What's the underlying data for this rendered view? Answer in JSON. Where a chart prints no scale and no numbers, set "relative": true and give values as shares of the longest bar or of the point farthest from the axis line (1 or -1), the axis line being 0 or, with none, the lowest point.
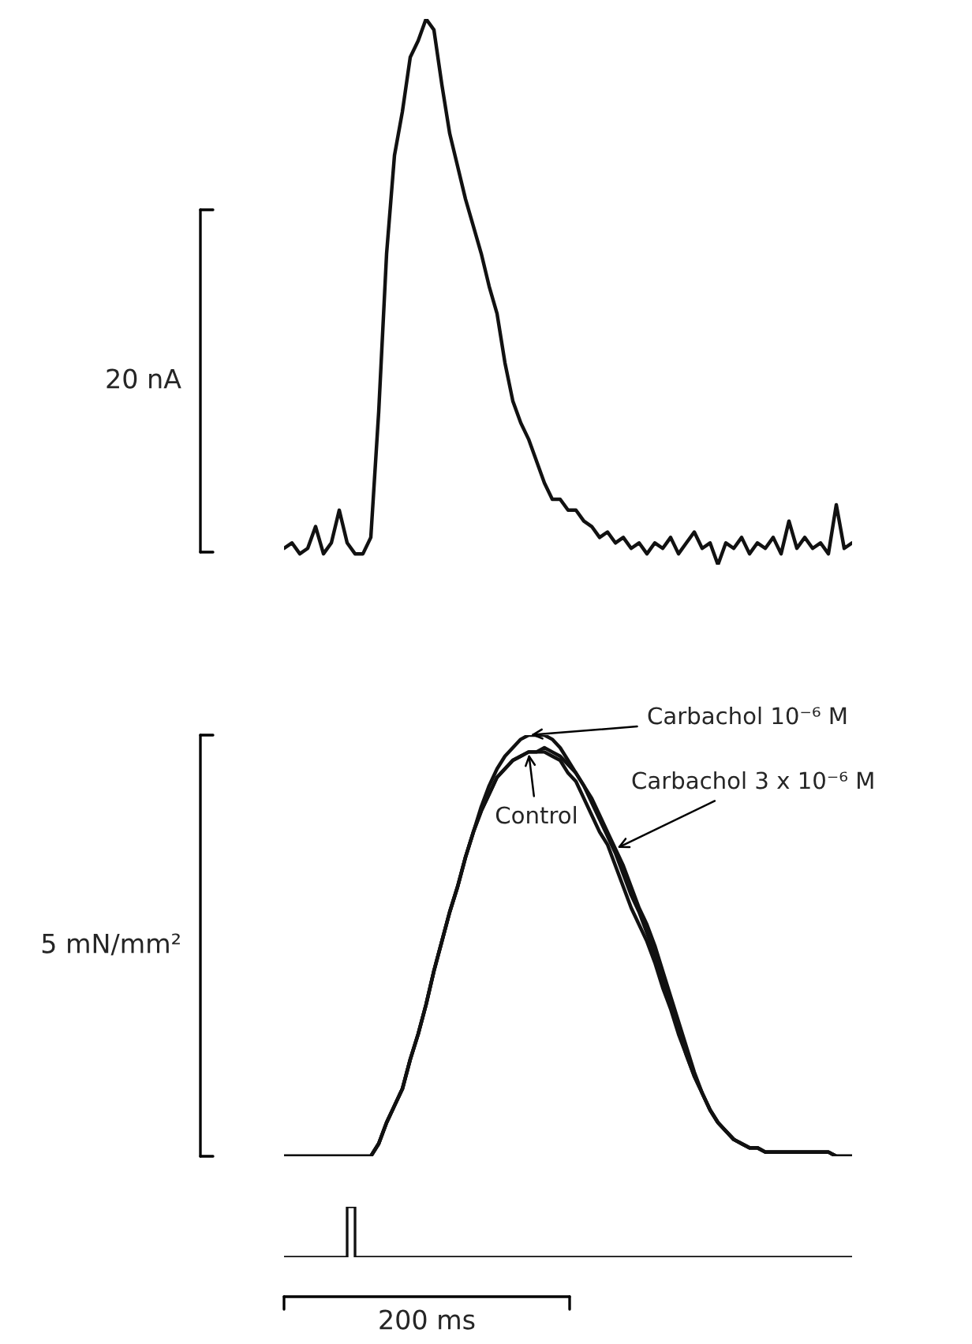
{
  "chart_data": [
    {
      "type": "line",
      "relative": true,
      "categories": [
        null,
        null,
        null,
        null,
        null,
        null,
        null,
        null,
        null,
        null,
        null,
        null,
        null,
        null,
        null,
        null,
        null,
        null,
        null,
        null,
        null,
        null,
        null,
        null,
        null,
        null,
        null,
        null,
        null,
        null,
        null,
        null,
        null,
        null,
        null,
        null,
        null,
        null,
        null,
        null,
        null,
        null,
        null,
        null,
        null,
        null,
        null,
        null,
        null,
        null,
        null,
        null,
        null,
        null,
        null,
        null,
        null,
        null,
        null,
        null,
        null,
        null,
        null,
        null,
        null,
        null,
        null,
        null,
        null,
        null,
        null,
        null,
        null
      ],
      "annotations": [
        "20 nA"
      ],
      "series": [
        {
          "color": "#111111",
          "values": [
            0.03,
            0.04,
            0.02,
            0.03,
            0.07,
            0.02,
            0.04,
            0.1,
            0.04,
            0.02,
            0.02,
            0.05,
            0.28,
            0.57,
            0.75,
            0.83,
            0.93,
            0.96,
            1.0,
            0.98,
            0.88,
            0.79,
            0.73,
            0.67,
            0.62,
            0.57,
            0.51,
            0.46,
            0.37,
            0.3,
            0.26,
            0.23,
            0.19,
            0.15,
            0.12,
            0.12,
            0.1,
            0.1,
            0.08,
            0.07,
            0.05,
            0.06,
            0.04,
            0.05,
            0.03,
            0.04,
            0.02,
            0.04,
            0.03,
            0.05,
            0.02,
            0.04,
            0.06,
            0.03,
            0.04,
            0.0,
            0.04,
            0.03,
            0.05,
            0.02,
            0.04,
            0.03,
            0.05,
            0.02,
            0.08,
            0.03,
            0.05,
            0.03,
            0.04,
            0.02,
            0.11,
            0.03,
            0.04
          ]
        }
      ]
    },
    {
      "type": "line",
      "relative": true,
      "categories": [
        null,
        null,
        null,
        null,
        null,
        null,
        null,
        null,
        null,
        null,
        null,
        null,
        null,
        null,
        null,
        null,
        null,
        null,
        null,
        null,
        null,
        null,
        null,
        null,
        null,
        null,
        null,
        null,
        null,
        null,
        null,
        null,
        null,
        null,
        null,
        null,
        null,
        null,
        null,
        null,
        null,
        null,
        null,
        null,
        null,
        null,
        null,
        null,
        null,
        null,
        null,
        null,
        null,
        null,
        null,
        null,
        null,
        null,
        null,
        null,
        null,
        null,
        null,
        null,
        null,
        null,
        null,
        null,
        null,
        null,
        null,
        null,
        null
      ],
      "annotations": [
        "5 mN/mm²"
      ],
      "series": [
        {
          "name": "Carbachol 10⁻⁶ M",
          "color": "#111111",
          "values": [
            0,
            0,
            0,
            0,
            0,
            0,
            0,
            0,
            0,
            0,
            0,
            0,
            0.03,
            0.08,
            0.12,
            0.16,
            0.23,
            0.29,
            0.36,
            0.44,
            0.51,
            0.58,
            0.64,
            0.71,
            0.77,
            0.83,
            0.88,
            0.92,
            0.95,
            0.97,
            0.99,
            1.0,
            1.0,
            1.0,
            0.99,
            0.97,
            0.94,
            0.91,
            0.88,
            0.84,
            0.8,
            0.76,
            0.72,
            0.67,
            0.62,
            0.58,
            0.53,
            0.48,
            0.42,
            0.36,
            0.3,
            0.24,
            0.19,
            0.15,
            0.11,
            0.08,
            0.06,
            0.04,
            0.03,
            0.02,
            0.02,
            0.01,
            0.01,
            0.01,
            0.01,
            0.01,
            0.01,
            0.01,
            0.01,
            0.01,
            0,
            0,
            0
          ]
        },
        {
          "name": "Carbachol 3 x 10⁻⁶ M",
          "color": "#111111",
          "values": [
            0,
            0,
            0,
            0,
            0,
            0,
            0,
            0,
            0,
            0,
            0,
            0,
            0.03,
            0.08,
            0.12,
            0.16,
            0.23,
            0.29,
            0.36,
            0.44,
            0.51,
            0.58,
            0.64,
            0.71,
            0.77,
            0.82,
            0.86,
            0.9,
            0.92,
            0.94,
            0.95,
            0.96,
            0.96,
            0.97,
            0.96,
            0.95,
            0.93,
            0.91,
            0.88,
            0.85,
            0.81,
            0.77,
            0.73,
            0.69,
            0.64,
            0.59,
            0.55,
            0.5,
            0.44,
            0.38,
            0.32,
            0.26,
            0.2,
            0.15,
            0.11,
            0.08,
            0.06,
            0.04,
            0.03,
            0.02,
            0.02,
            0.01,
            0.01,
            0.01,
            0.01,
            0.01,
            0.01,
            0.01,
            0.01,
            0.01,
            0,
            0,
            0
          ]
        },
        {
          "name": "Control",
          "color": "#111111",
          "values": [
            0,
            0,
            0,
            0,
            0,
            0,
            0,
            0,
            0,
            0,
            0,
            0,
            0.03,
            0.08,
            0.12,
            0.16,
            0.23,
            0.29,
            0.36,
            0.44,
            0.51,
            0.58,
            0.64,
            0.71,
            0.77,
            0.82,
            0.86,
            0.9,
            0.92,
            0.94,
            0.95,
            0.96,
            0.96,
            0.96,
            0.95,
            0.94,
            0.91,
            0.89,
            0.85,
            0.81,
            0.77,
            0.74,
            0.69,
            0.64,
            0.59,
            0.55,
            0.51,
            0.46,
            0.4,
            0.35,
            0.29,
            0.24,
            0.19,
            0.15,
            0.11,
            0.08,
            0.06,
            0.04,
            0.03,
            0.02,
            0.02,
            0.01,
            0.01,
            0.01,
            0.01,
            0.01,
            0.01,
            0.01,
            0.01,
            0.01,
            0,
            0,
            0
          ]
        }
      ]
    },
    {
      "type": "step",
      "relative": true,
      "categories": [
        null,
        null,
        null,
        null,
        null,
        null,
        null,
        null,
        null,
        null,
        null,
        null,
        null,
        null,
        null,
        null,
        null,
        null,
        null,
        null,
        null,
        null,
        null,
        null,
        null,
        null,
        null,
        null,
        null,
        null,
        null,
        null,
        null,
        null,
        null,
        null,
        null,
        null,
        null,
        null,
        null,
        null,
        null,
        null,
        null,
        null,
        null,
        null,
        null,
        null,
        null,
        null,
        null,
        null,
        null,
        null,
        null,
        null,
        null,
        null,
        null,
        null,
        null,
        null,
        null,
        null,
        null,
        null,
        null,
        null,
        null,
        null,
        null
      ],
      "annotations": [
        "200 ms"
      ],
      "series": [
        {
          "color": "#111111",
          "values": [
            0,
            0,
            0,
            0,
            0,
            0,
            0,
            0,
            1,
            0,
            0,
            0,
            0,
            0,
            0,
            0,
            0,
            0,
            0,
            0,
            0,
            0,
            0,
            0,
            0,
            0,
            0,
            0,
            0,
            0,
            0,
            0,
            0,
            0,
            0,
            0,
            0,
            0,
            0,
            0,
            0,
            0,
            0,
            0,
            0,
            0,
            0,
            0,
            0,
            0,
            0,
            0,
            0,
            0,
            0,
            0,
            0,
            0,
            0,
            0,
            0,
            0,
            0,
            0,
            0,
            0,
            0,
            0,
            0,
            0,
            0,
            0,
            0
          ]
        }
      ]
    }
  ]
}
